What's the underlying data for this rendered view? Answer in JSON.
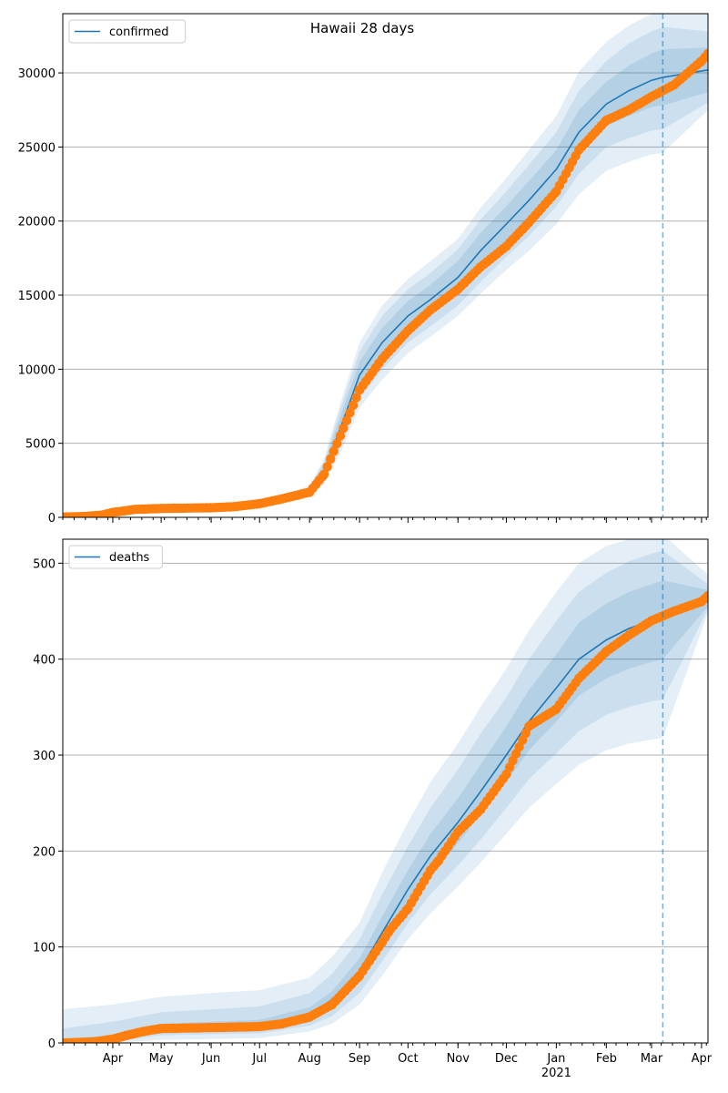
{
  "figure": {
    "title": "Hawaii 28 days"
  },
  "colors": {
    "model": "#1f77b4",
    "observed": "#ff7f0e",
    "band": "#1f77b4",
    "grid": "#b0b0b0",
    "forecast_line": "#1f77b4"
  },
  "chart_data": [
    {
      "type": "line",
      "legend": {
        "label": "confirmed",
        "placement": "top-left"
      },
      "ylim": [
        0,
        34000
      ],
      "yticks": [
        0,
        5000,
        10000,
        15000,
        20000,
        25000,
        30000
      ],
      "grid": "horizontal",
      "xlim_days": [
        "2020-03-01",
        "2021-04-05"
      ],
      "forecast_start": "2021-03-08",
      "month_ticks": [
        "Apr",
        "May",
        "Jun",
        "Jul",
        "Aug",
        "Sep",
        "Oct",
        "Nov",
        "Dec",
        "Jan",
        "Feb",
        "Mar",
        "Apr"
      ],
      "year_label": "",
      "model": {
        "x": [
          "2020-03-01",
          "2020-03-15",
          "2020-04-01",
          "2020-04-15",
          "2020-05-01",
          "2020-06-01",
          "2020-07-01",
          "2020-07-15",
          "2020-08-01",
          "2020-08-10",
          "2020-08-20",
          "2020-09-01",
          "2020-09-15",
          "2020-10-01",
          "2020-10-15",
          "2020-11-01",
          "2020-11-15",
          "2020-12-01",
          "2020-12-15",
          "2021-01-01",
          "2021-01-15",
          "2021-02-01",
          "2021-02-15",
          "2021-03-01",
          "2021-03-08",
          "2021-04-05"
        ],
        "mid": [
          80,
          110,
          350,
          560,
          620,
          660,
          950,
          1250,
          1800,
          3100,
          6000,
          9600,
          11800,
          13600,
          14700,
          16200,
          18000,
          19800,
          21400,
          23500,
          26000,
          27900,
          28800,
          29500,
          29700,
          30200
        ],
        "inner": [
          [
            60,
            100
          ],
          [
            90,
            130
          ],
          [
            300,
            400
          ],
          [
            500,
            620
          ],
          [
            560,
            680
          ],
          [
            600,
            720
          ],
          [
            870,
            1030
          ],
          [
            1150,
            1350
          ],
          [
            1650,
            1950
          ],
          [
            2700,
            3500
          ],
          [
            5200,
            6800
          ],
          [
            8700,
            10500
          ],
          [
            10800,
            12800
          ],
          [
            12600,
            14600
          ],
          [
            13700,
            15700
          ],
          [
            15100,
            17300
          ],
          [
            16800,
            19200
          ],
          [
            18600,
            21000
          ],
          [
            20100,
            22700
          ],
          [
            22200,
            24800
          ],
          [
            24500,
            27500
          ],
          [
            26400,
            29400
          ],
          [
            27100,
            30500
          ],
          [
            27700,
            31300
          ],
          [
            27800,
            31600
          ],
          [
            28700,
            31700
          ]
        ],
        "mid_band": [
          [
            50,
            110
          ],
          [
            80,
            140
          ],
          [
            270,
            430
          ],
          [
            460,
            660
          ],
          [
            520,
            720
          ],
          [
            560,
            760
          ],
          [
            820,
            1080
          ],
          [
            1080,
            1420
          ],
          [
            1550,
            2050
          ],
          [
            2450,
            3750
          ],
          [
            4700,
            7300
          ],
          [
            8000,
            11200
          ],
          [
            10000,
            13600
          ],
          [
            11800,
            15400
          ],
          [
            12900,
            16500
          ],
          [
            14300,
            18100
          ],
          [
            15900,
            20100
          ],
          [
            17600,
            22000
          ],
          [
            19000,
            23800
          ],
          [
            21000,
            26000
          ],
          [
            23200,
            28800
          ],
          [
            25000,
            30800
          ],
          [
            25600,
            32000
          ],
          [
            26100,
            32800
          ],
          [
            26200,
            33100
          ],
          [
            28000,
            32800
          ]
        ],
        "outer": [
          [
            40,
            120
          ],
          [
            70,
            150
          ],
          [
            240,
            460
          ],
          [
            420,
            700
          ],
          [
            480,
            760
          ],
          [
            520,
            800
          ],
          [
            770,
            1130
          ],
          [
            1020,
            1480
          ],
          [
            1450,
            2150
          ],
          [
            2250,
            3950
          ],
          [
            4300,
            7700
          ],
          [
            7400,
            11800
          ],
          [
            9300,
            14300
          ],
          [
            11100,
            16100
          ],
          [
            12200,
            17300
          ],
          [
            13600,
            18800
          ],
          [
            15100,
            20900
          ],
          [
            16700,
            22900
          ],
          [
            18000,
            24800
          ],
          [
            19800,
            27100
          ],
          [
            21800,
            30100
          ],
          [
            23400,
            32100
          ],
          [
            24000,
            33200
          ],
          [
            24500,
            34000
          ],
          [
            24600,
            34300
          ],
          [
            27500,
            34700
          ]
        ]
      },
      "observed": {
        "x": [
          "2020-03-01",
          "2020-03-15",
          "2020-03-25",
          "2020-04-01",
          "2020-04-15",
          "2020-05-01",
          "2020-06-01",
          "2020-06-15",
          "2020-07-01",
          "2020-07-15",
          "2020-08-01",
          "2020-08-10",
          "2020-08-20",
          "2020-09-01",
          "2020-09-15",
          "2020-10-01",
          "2020-10-15",
          "2020-11-01",
          "2020-11-15",
          "2020-12-01",
          "2020-12-15",
          "2021-01-01",
          "2021-01-15",
          "2021-02-01",
          "2021-02-15",
          "2021-03-01",
          "2021-03-15",
          "2021-04-01",
          "2021-04-05"
        ],
        "y": [
          20,
          60,
          150,
          330,
          540,
          600,
          650,
          720,
          920,
          1250,
          1700,
          2900,
          5500,
          8600,
          10700,
          12600,
          14000,
          15400,
          16900,
          18300,
          19900,
          22000,
          24800,
          26800,
          27500,
          28400,
          29200,
          30800,
          31300
        ]
      }
    },
    {
      "type": "line",
      "legend": {
        "label": "deaths",
        "placement": "top-left"
      },
      "ylim": [
        0,
        525
      ],
      "yticks": [
        0,
        100,
        200,
        300,
        400,
        500
      ],
      "grid": "horizontal",
      "xlim_days": [
        "2020-03-01",
        "2021-04-05"
      ],
      "forecast_start": "2021-03-08",
      "month_ticks": [
        "Apr",
        "May",
        "Jun",
        "Jul",
        "Aug",
        "Sep",
        "Oct",
        "Nov",
        "Dec",
        "Jan",
        "Feb",
        "Mar",
        "Apr"
      ],
      "year_label": "2021",
      "model": {
        "x": [
          "2020-03-01",
          "2020-04-01",
          "2020-05-01",
          "2020-06-01",
          "2020-07-01",
          "2020-08-01",
          "2020-08-15",
          "2020-09-01",
          "2020-09-15",
          "2020-10-01",
          "2020-10-15",
          "2020-11-01",
          "2020-11-15",
          "2020-12-01",
          "2020-12-15",
          "2021-01-01",
          "2021-01-15",
          "2021-02-01",
          "2021-02-15",
          "2021-03-01",
          "2021-03-08",
          "2021-04-05"
        ],
        "mid": [
          1,
          4,
          15,
          17,
          19,
          30,
          45,
          75,
          115,
          160,
          195,
          230,
          262,
          300,
          335,
          370,
          400,
          420,
          432,
          440,
          445,
          463
        ],
        "inner": [
          [
            0,
            4
          ],
          [
            2,
            8
          ],
          [
            11,
            20
          ],
          [
            13,
            22
          ],
          [
            15,
            24
          ],
          [
            25,
            37
          ],
          [
            38,
            54
          ],
          [
            65,
            88
          ],
          [
            100,
            132
          ],
          [
            142,
            180
          ],
          [
            175,
            218
          ],
          [
            208,
            255
          ],
          [
            238,
            290
          ],
          [
            272,
            330
          ],
          [
            305,
            368
          ],
          [
            335,
            405
          ],
          [
            362,
            438
          ],
          [
            380,
            458
          ],
          [
            390,
            470
          ],
          [
            397,
            478
          ],
          [
            400,
            482
          ],
          [
            455,
            472
          ]
        ],
        "mid_band": [
          [
            0,
            15
          ],
          [
            1,
            22
          ],
          [
            8,
            32
          ],
          [
            9,
            35
          ],
          [
            10,
            38
          ],
          [
            18,
            52
          ],
          [
            28,
            72
          ],
          [
            52,
            108
          ],
          [
            85,
            155
          ],
          [
            125,
            205
          ],
          [
            155,
            245
          ],
          [
            185,
            285
          ],
          [
            212,
            322
          ],
          [
            245,
            360
          ],
          [
            275,
            400
          ],
          [
            302,
            440
          ],
          [
            325,
            470
          ],
          [
            342,
            490
          ],
          [
            350,
            502
          ],
          [
            356,
            510
          ],
          [
            358,
            513
          ],
          [
            452,
            478
          ]
        ],
        "outer": [
          [
            0,
            35
          ],
          [
            0,
            40
          ],
          [
            3,
            48
          ],
          [
            4,
            52
          ],
          [
            5,
            55
          ],
          [
            12,
            68
          ],
          [
            20,
            90
          ],
          [
            40,
            125
          ],
          [
            70,
            178
          ],
          [
            108,
            230
          ],
          [
            135,
            272
          ],
          [
            163,
            312
          ],
          [
            188,
            350
          ],
          [
            218,
            390
          ],
          [
            245,
            430
          ],
          [
            270,
            470
          ],
          [
            290,
            500
          ],
          [
            305,
            518
          ],
          [
            312,
            525
          ],
          [
            316,
            528
          ],
          [
            318,
            530
          ],
          [
            448,
            488
          ]
        ]
      },
      "observed": {
        "x": [
          "2020-03-01",
          "2020-03-20",
          "2020-04-01",
          "2020-04-10",
          "2020-04-20",
          "2020-05-01",
          "2020-06-01",
          "2020-07-01",
          "2020-07-15",
          "2020-08-01",
          "2020-08-15",
          "2020-09-01",
          "2020-09-15",
          "2020-09-20",
          "2020-10-01",
          "2020-10-15",
          "2020-10-20",
          "2020-11-01",
          "2020-11-15",
          "2020-12-01",
          "2020-12-15",
          "2021-01-01",
          "2021-01-15",
          "2021-02-01",
          "2021-02-15",
          "2021-03-01",
          "2021-03-15",
          "2021-04-01",
          "2021-04-05"
        ],
        "y": [
          0,
          1,
          4,
          8,
          12,
          15,
          16,
          17,
          20,
          27,
          40,
          70,
          105,
          118,
          140,
          180,
          190,
          220,
          243,
          280,
          330,
          348,
          380,
          408,
          425,
          440,
          450,
          460,
          466
        ]
      }
    }
  ]
}
